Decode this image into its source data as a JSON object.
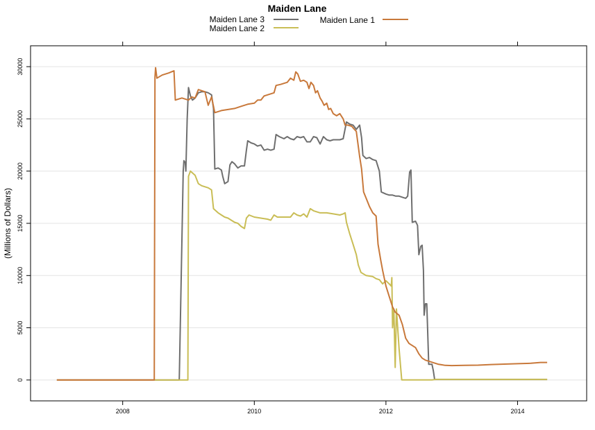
{
  "chart_data": {
    "type": "line",
    "title": "Maiden Lane",
    "xlabel": "",
    "ylabel": "(Millions of Dollars)",
    "xlim": [
      2006.6,
      2015.05
    ],
    "ylim": [
      -2000,
      32000
    ],
    "xticks": [
      2008,
      2010,
      2012,
      2014
    ],
    "yticks": [
      0,
      5000,
      10000,
      15000,
      20000,
      25000,
      30000
    ],
    "grid": "horizontal",
    "legend_position": "top",
    "series": [
      {
        "name": "Maiden Lane 3",
        "color": "#6e6e6e",
        "points": [
          [
            2007.0,
            0
          ],
          [
            2008.86,
            0
          ],
          [
            2008.92,
            20000
          ],
          [
            2008.93,
            21000
          ],
          [
            2008.95,
            20800
          ],
          [
            2008.96,
            20000
          ],
          [
            2008.98,
            25000
          ],
          [
            2009.0,
            28000
          ],
          [
            2009.03,
            27200
          ],
          [
            2009.06,
            26800
          ],
          [
            2009.1,
            27000
          ],
          [
            2009.15,
            27500
          ],
          [
            2009.2,
            27600
          ],
          [
            2009.25,
            27600
          ],
          [
            2009.3,
            27500
          ],
          [
            2009.35,
            27300
          ],
          [
            2009.38,
            26000
          ],
          [
            2009.4,
            20200
          ],
          [
            2009.45,
            20300
          ],
          [
            2009.5,
            20100
          ],
          [
            2009.52,
            19500
          ],
          [
            2009.55,
            18800
          ],
          [
            2009.6,
            19000
          ],
          [
            2009.63,
            20600
          ],
          [
            2009.66,
            20900
          ],
          [
            2009.7,
            20700
          ],
          [
            2009.75,
            20300
          ],
          [
            2009.8,
            20500
          ],
          [
            2009.85,
            20500
          ],
          [
            2009.88,
            22000
          ],
          [
            2009.9,
            22900
          ],
          [
            2009.95,
            22700
          ],
          [
            2010.0,
            22600
          ],
          [
            2010.05,
            22400
          ],
          [
            2010.1,
            22500
          ],
          [
            2010.15,
            22000
          ],
          [
            2010.2,
            22100
          ],
          [
            2010.25,
            22000
          ],
          [
            2010.3,
            22100
          ],
          [
            2010.33,
            23500
          ],
          [
            2010.38,
            23300
          ],
          [
            2010.45,
            23100
          ],
          [
            2010.5,
            23300
          ],
          [
            2010.55,
            23100
          ],
          [
            2010.6,
            23000
          ],
          [
            2010.65,
            23300
          ],
          [
            2010.7,
            23200
          ],
          [
            2010.75,
            23300
          ],
          [
            2010.8,
            22800
          ],
          [
            2010.85,
            22800
          ],
          [
            2010.9,
            23300
          ],
          [
            2010.95,
            23200
          ],
          [
            2011.0,
            22600
          ],
          [
            2011.05,
            23300
          ],
          [
            2011.1,
            23000
          ],
          [
            2011.15,
            22900
          ],
          [
            2011.2,
            23000
          ],
          [
            2011.25,
            23000
          ],
          [
            2011.3,
            23000
          ],
          [
            2011.35,
            23100
          ],
          [
            2011.4,
            24700
          ],
          [
            2011.45,
            24500
          ],
          [
            2011.5,
            24400
          ],
          [
            2011.55,
            24000
          ],
          [
            2011.6,
            24400
          ],
          [
            2011.63,
            23200
          ],
          [
            2011.65,
            21500
          ],
          [
            2011.7,
            21200
          ],
          [
            2011.75,
            21300
          ],
          [
            2011.8,
            21100
          ],
          [
            2011.85,
            21000
          ],
          [
            2011.9,
            20000
          ],
          [
            2011.93,
            18000
          ],
          [
            2012.0,
            17800
          ],
          [
            2012.05,
            17700
          ],
          [
            2012.1,
            17700
          ],
          [
            2012.15,
            17600
          ],
          [
            2012.2,
            17600
          ],
          [
            2012.25,
            17500
          ],
          [
            2012.3,
            17400
          ],
          [
            2012.33,
            17600
          ],
          [
            2012.36,
            19900
          ],
          [
            2012.38,
            20100
          ],
          [
            2012.4,
            15100
          ],
          [
            2012.45,
            15200
          ],
          [
            2012.48,
            14800
          ],
          [
            2012.5,
            12000
          ],
          [
            2012.53,
            12800
          ],
          [
            2012.55,
            12900
          ],
          [
            2012.57,
            10500
          ],
          [
            2012.58,
            6200
          ],
          [
            2012.6,
            7300
          ],
          [
            2012.62,
            7300
          ],
          [
            2012.63,
            5500
          ],
          [
            2012.65,
            1500
          ],
          [
            2012.7,
            1500
          ],
          [
            2012.72,
            900
          ],
          [
            2012.74,
            50
          ],
          [
            2014.45,
            50
          ]
        ]
      },
      {
        "name": "Maiden Lane 2",
        "color": "#c9bd55",
        "points": [
          [
            2007.0,
            0
          ],
          [
            2008.99,
            0
          ],
          [
            2009.0,
            19500
          ],
          [
            2009.03,
            20000
          ],
          [
            2009.1,
            19600
          ],
          [
            2009.15,
            18800
          ],
          [
            2009.2,
            18600
          ],
          [
            2009.3,
            18400
          ],
          [
            2009.35,
            18200
          ],
          [
            2009.38,
            16400
          ],
          [
            2009.45,
            16000
          ],
          [
            2009.5,
            15800
          ],
          [
            2009.55,
            15600
          ],
          [
            2009.6,
            15500
          ],
          [
            2009.65,
            15300
          ],
          [
            2009.7,
            15100
          ],
          [
            2009.75,
            15000
          ],
          [
            2009.8,
            14700
          ],
          [
            2009.85,
            14500
          ],
          [
            2009.88,
            15500
          ],
          [
            2009.92,
            15800
          ],
          [
            2010.0,
            15600
          ],
          [
            2010.1,
            15500
          ],
          [
            2010.2,
            15400
          ],
          [
            2010.25,
            15300
          ],
          [
            2010.3,
            15800
          ],
          [
            2010.35,
            15600
          ],
          [
            2010.45,
            15600
          ],
          [
            2010.55,
            15600
          ],
          [
            2010.6,
            16000
          ],
          [
            2010.65,
            15800
          ],
          [
            2010.7,
            15700
          ],
          [
            2010.75,
            15900
          ],
          [
            2010.8,
            15600
          ],
          [
            2010.85,
            16400
          ],
          [
            2010.9,
            16200
          ],
          [
            2010.95,
            16100
          ],
          [
            2011.0,
            16000
          ],
          [
            2011.1,
            16000
          ],
          [
            2011.2,
            15900
          ],
          [
            2011.3,
            15800
          ],
          [
            2011.35,
            15900
          ],
          [
            2011.38,
            16000
          ],
          [
            2011.4,
            15100
          ],
          [
            2011.45,
            14000
          ],
          [
            2011.5,
            13000
          ],
          [
            2011.55,
            12000
          ],
          [
            2011.58,
            11000
          ],
          [
            2011.62,
            10300
          ],
          [
            2011.7,
            10000
          ],
          [
            2011.8,
            9900
          ],
          [
            2011.85,
            9700
          ],
          [
            2011.9,
            9600
          ],
          [
            2011.95,
            9200
          ],
          [
            2012.0,
            9500
          ],
          [
            2012.05,
            9200
          ],
          [
            2012.08,
            9000
          ],
          [
            2012.09,
            9800
          ],
          [
            2012.1,
            5000
          ],
          [
            2012.12,
            6800
          ],
          [
            2012.14,
            1200
          ],
          [
            2012.16,
            6800
          ],
          [
            2012.2,
            3000
          ],
          [
            2012.24,
            10
          ],
          [
            2012.7,
            10
          ],
          [
            2012.75,
            50
          ],
          [
            2014.45,
            50
          ]
        ]
      },
      {
        "name": "Maiden Lane 1",
        "color": "#c8783a",
        "points": [
          [
            2007.0,
            0
          ],
          [
            2008.48,
            0
          ],
          [
            2008.49,
            29000
          ],
          [
            2008.5,
            29900
          ],
          [
            2008.52,
            28900
          ],
          [
            2008.6,
            29200
          ],
          [
            2008.7,
            29400
          ],
          [
            2008.78,
            29600
          ],
          [
            2008.8,
            26800
          ],
          [
            2008.9,
            27000
          ],
          [
            2009.0,
            26800
          ],
          [
            2009.05,
            27100
          ],
          [
            2009.1,
            27000
          ],
          [
            2009.15,
            27800
          ],
          [
            2009.25,
            27600
          ],
          [
            2009.3,
            26300
          ],
          [
            2009.35,
            27100
          ],
          [
            2009.4,
            25600
          ],
          [
            2009.5,
            25800
          ],
          [
            2009.6,
            25900
          ],
          [
            2009.7,
            26000
          ],
          [
            2009.8,
            26200
          ],
          [
            2009.9,
            26400
          ],
          [
            2010.0,
            26500
          ],
          [
            2010.05,
            26800
          ],
          [
            2010.1,
            26800
          ],
          [
            2010.15,
            27200
          ],
          [
            2010.2,
            27300
          ],
          [
            2010.3,
            27500
          ],
          [
            2010.33,
            28200
          ],
          [
            2010.4,
            28300
          ],
          [
            2010.5,
            28500
          ],
          [
            2010.55,
            28900
          ],
          [
            2010.6,
            28700
          ],
          [
            2010.63,
            29500
          ],
          [
            2010.66,
            29300
          ],
          [
            2010.7,
            28600
          ],
          [
            2010.75,
            28700
          ],
          [
            2010.8,
            28500
          ],
          [
            2010.83,
            27900
          ],
          [
            2010.86,
            28500
          ],
          [
            2010.9,
            28200
          ],
          [
            2010.93,
            27500
          ],
          [
            2010.96,
            27700
          ],
          [
            2011.0,
            27000
          ],
          [
            2011.03,
            26700
          ],
          [
            2011.06,
            26300
          ],
          [
            2011.1,
            26500
          ],
          [
            2011.13,
            25900
          ],
          [
            2011.16,
            26000
          ],
          [
            2011.2,
            25500
          ],
          [
            2011.25,
            25300
          ],
          [
            2011.3,
            25500
          ],
          [
            2011.35,
            25000
          ],
          [
            2011.38,
            24400
          ],
          [
            2011.42,
            24400
          ],
          [
            2011.48,
            24300
          ],
          [
            2011.52,
            24000
          ],
          [
            2011.55,
            23800
          ],
          [
            2011.6,
            21400
          ],
          [
            2011.63,
            20200
          ],
          [
            2011.66,
            18000
          ],
          [
            2011.7,
            17400
          ],
          [
            2011.75,
            16600
          ],
          [
            2011.8,
            16000
          ],
          [
            2011.85,
            15700
          ],
          [
            2011.88,
            13000
          ],
          [
            2011.92,
            11500
          ],
          [
            2011.95,
            10500
          ],
          [
            2012.0,
            9000
          ],
          [
            2012.05,
            8000
          ],
          [
            2012.1,
            7000
          ],
          [
            2012.14,
            6500
          ],
          [
            2012.2,
            6200
          ],
          [
            2012.25,
            5300
          ],
          [
            2012.3,
            4000
          ],
          [
            2012.35,
            3500
          ],
          [
            2012.45,
            3100
          ],
          [
            2012.5,
            2500
          ],
          [
            2012.55,
            2100
          ],
          [
            2012.6,
            1900
          ],
          [
            2012.65,
            1800
          ],
          [
            2012.7,
            1700
          ],
          [
            2012.75,
            1600
          ],
          [
            2012.8,
            1500
          ],
          [
            2012.85,
            1450
          ],
          [
            2012.9,
            1400
          ],
          [
            2013.0,
            1380
          ],
          [
            2013.2,
            1400
          ],
          [
            2013.4,
            1420
          ],
          [
            2013.6,
            1480
          ],
          [
            2013.8,
            1520
          ],
          [
            2014.0,
            1560
          ],
          [
            2014.2,
            1600
          ],
          [
            2014.35,
            1680
          ],
          [
            2014.45,
            1680
          ]
        ]
      }
    ]
  }
}
